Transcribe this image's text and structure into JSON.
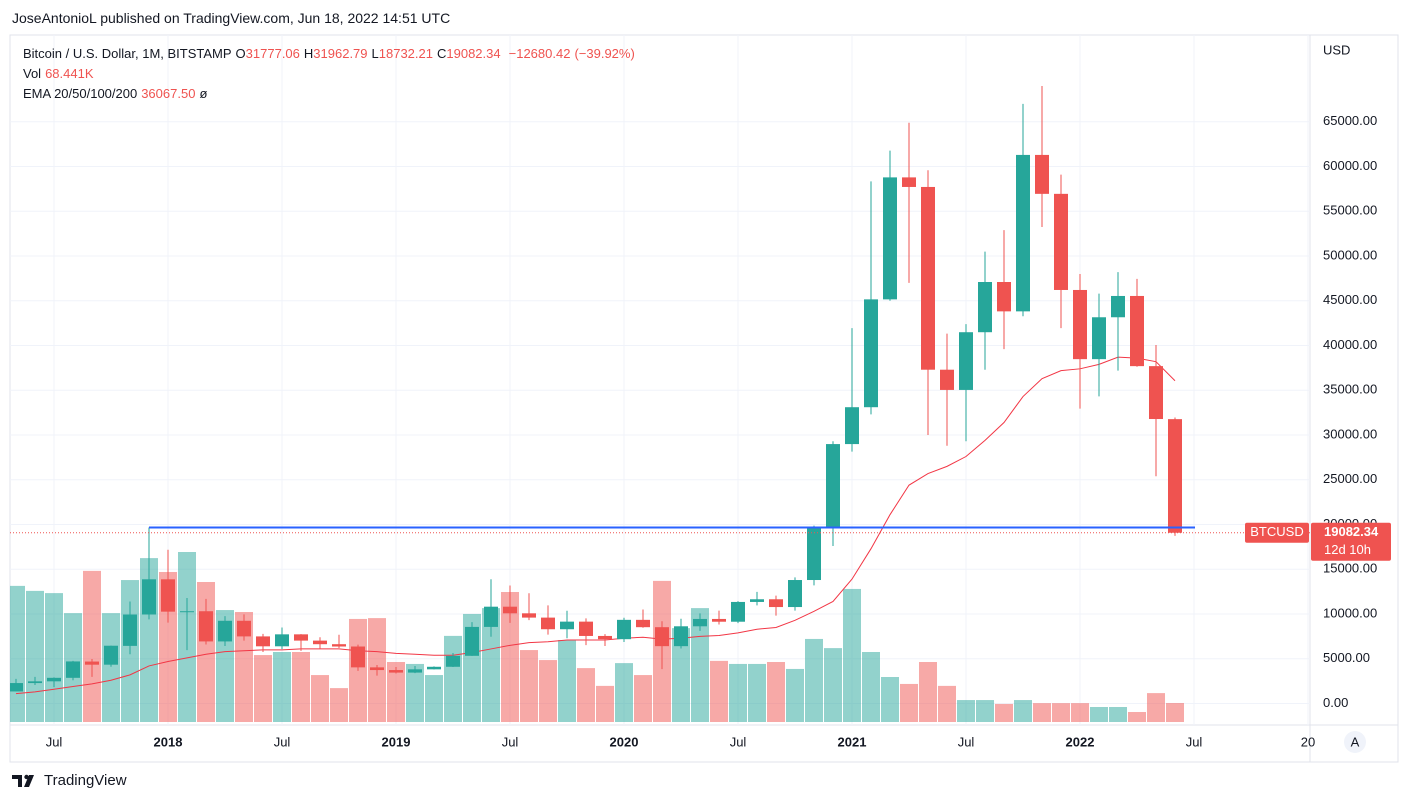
{
  "header": "JoseAntonioL published on TradingView.com, Jun 18, 2022 14:51 UTC",
  "footer": "TradingView",
  "chart_data": {
    "type": "candlestick",
    "symbol": "Bitcoin / U.S. Dollar, 1M, BITSTAMP",
    "ohlc_legend": [
      {
        "key": "O",
        "value": 31777.06
      },
      {
        "key": "H",
        "value": 31962.79
      },
      {
        "key": "L",
        "value": 18732.21
      },
      {
        "key": "C",
        "value": 19082.34
      }
    ],
    "change": {
      "value": -12680.42,
      "label": "−12680.42"
    },
    "change_pct": {
      "value": -39.92,
      "label": "(−39.92%)"
    },
    "volume_legend": {
      "name": "Vol",
      "value": 68.441,
      "label": "68.441K"
    },
    "ema_legend": {
      "name": "EMA 20/50/100/200",
      "value": 36067.5,
      "label": "36067.50",
      "extra": "ø"
    },
    "currency": "USD",
    "up_color": "#26a69a",
    "down_color": "#ef5350",
    "x": [
      "2017-05",
      "2017-06",
      "2017-07",
      "2017-08",
      "2017-09",
      "2017-10",
      "2017-11",
      "2017-12",
      "2018-01",
      "2018-02",
      "2018-03",
      "2018-04",
      "2018-05",
      "2018-06",
      "2018-07",
      "2018-08",
      "2018-09",
      "2018-10",
      "2018-11",
      "2018-12",
      "2019-01",
      "2019-02",
      "2019-03",
      "2019-04",
      "2019-05",
      "2019-06",
      "2019-07",
      "2019-08",
      "2019-09",
      "2019-10",
      "2019-11",
      "2019-12",
      "2020-01",
      "2020-02",
      "2020-03",
      "2020-04",
      "2020-05",
      "2020-06",
      "2020-07",
      "2020-08",
      "2020-09",
      "2020-10",
      "2020-11",
      "2020-12",
      "2021-01",
      "2021-02",
      "2021-03",
      "2021-04",
      "2021-05",
      "2021-06",
      "2021-07",
      "2021-08",
      "2021-09",
      "2021-10",
      "2021-11",
      "2021-12",
      "2022-01",
      "2022-02",
      "2022-03",
      "2022-04",
      "2022-05",
      "2022-06"
    ],
    "open": [
      1348,
      2286,
      2480,
      2871,
      4689,
      4339,
      6440,
      9947,
      13880,
      10266,
      10313,
      6938,
      9245,
      7500,
      6393,
      7730,
      7030,
      6630,
      6370,
      4040,
      3740,
      3457,
      3820,
      4105,
      5330,
      8560,
      10820,
      10080,
      9600,
      8300,
      9150,
      7550,
      7190,
      9350,
      8530,
      6410,
      8630,
      9450,
      9140,
      11350,
      11650,
      10780,
      13800,
      19700,
      28990,
      33110,
      45160,
      58790,
      57720,
      37300,
      35040,
      41490,
      47100,
      43820,
      61300,
      56950,
      46210,
      38480,
      43160,
      45540,
      37700,
      31777.06
    ],
    "high": [
      2760,
      2980,
      2916,
      4760,
      4975,
      6470,
      11395,
      19666,
      17176,
      11787,
      11700,
      9759,
      9964,
      7779,
      8490,
      7750,
      7410,
      7680,
      6580,
      4310,
      4080,
      4190,
      4150,
      5640,
      9090,
      13880,
      13190,
      12320,
      10960,
      10370,
      9520,
      7750,
      9580,
      10500,
      9190,
      9470,
      10070,
      10380,
      11440,
      12470,
      12060,
      14100,
      19880,
      29300,
      41950,
      58350,
      61780,
      64900,
      59590,
      41330,
      42400,
      50500,
      52900,
      67000,
      69000,
      59100,
      47990,
      45800,
      48200,
      47450,
      40060,
      31962.79
    ],
    "low": [
      1348,
      2076,
      1830,
      2603,
      2972,
      4110,
      5507,
      9400,
      9035,
      5968,
      6600,
      6425,
      7034,
      5755,
      6074,
      5880,
      6100,
      6200,
      3650,
      3120,
      3360,
      3400,
      3800,
      4080,
      5330,
      7460,
      9010,
      9320,
      7700,
      7300,
      6520,
      6430,
      6870,
      8470,
      3850,
      6150,
      8120,
      8830,
      8980,
      10960,
      9820,
      10380,
      13200,
      17600,
      28150,
      32310,
      45000,
      47000,
      30000,
      28800,
      29300,
      37300,
      39600,
      43280,
      53250,
      41950,
      32950,
      34320,
      37200,
      37630,
      25400,
      18732.21
    ],
    "close": [
      2286,
      2480,
      2871,
      4703,
      4339,
      6458,
      9946,
      13880,
      10265,
      10313,
      6938,
      9245,
      7500,
      6393,
      7730,
      7030,
      6630,
      6370,
      4040,
      3740,
      3457,
      3820,
      4105,
      5330,
      8560,
      10820,
      10080,
      9600,
      8300,
      9150,
      7550,
      7190,
      9350,
      8530,
      6410,
      8630,
      9450,
      9140,
      11350,
      11650,
      10780,
      13800,
      19700,
      28990,
      33110,
      45160,
      58790,
      57720,
      37300,
      35040,
      41490,
      47100,
      43820,
      61300,
      56950,
      46210,
      38480,
      43160,
      45540,
      37700,
      31790,
      19082.34
    ],
    "volume": [
      490,
      472,
      464,
      392,
      544,
      392,
      511,
      590,
      540,
      612,
      504,
      403,
      396,
      241,
      252,
      252,
      169,
      122,
      371,
      374,
      216,
      209,
      169,
      310,
      389,
      410,
      468,
      259,
      223,
      295,
      194,
      130,
      212,
      169,
      508,
      338,
      410,
      220,
      209,
      209,
      216,
      191,
      299,
      266,
      479,
      252,
      162,
      137,
      216,
      130,
      79,
      79,
      65,
      79,
      68,
      68,
      68,
      54,
      54,
      36,
      104,
      68.441
    ],
    "ema": {
      "color": "#f23645",
      "values": [
        1100,
        1300,
        1600,
        1900,
        2200,
        2600,
        3200,
        4200,
        4700,
        5100,
        5500,
        5800,
        5900,
        6000,
        6000,
        6100,
        6100,
        6100,
        5900,
        5800,
        5600,
        5500,
        5400,
        5400,
        5700,
        6100,
        6500,
        6800,
        6900,
        7100,
        7100,
        7100,
        7300,
        7400,
        7200,
        7300,
        7500,
        7600,
        7900,
        8300,
        8500,
        9300,
        10300,
        11400,
        13900,
        17300,
        21100,
        24400,
        25700,
        26500,
        27600,
        29400,
        31400,
        34300,
        36300,
        37200,
        37400,
        37900,
        38700,
        38600,
        38200,
        36067.5
      ]
    },
    "hline": {
      "value": 19666,
      "from": "2017-12",
      "color": "#2962ff"
    },
    "price_tag": {
      "symbol": "BTCUSD",
      "value": 19082.34,
      "countdown": "12d 10h"
    },
    "ylim": [
      -2400,
      74700
    ],
    "yticks": [
      {
        "value": 0,
        "label": "0.00"
      },
      {
        "value": 5000,
        "label": "5000.00"
      },
      {
        "value": 10000,
        "label": "10000.00"
      },
      {
        "value": 15000,
        "label": "15000.00"
      },
      {
        "value": 20000,
        "label": "20000.00"
      },
      {
        "value": 25000,
        "label": "25000.00"
      },
      {
        "value": 30000,
        "label": "30000.00"
      },
      {
        "value": 35000,
        "label": "35000.00"
      },
      {
        "value": 40000,
        "label": "40000.00"
      },
      {
        "value": 45000,
        "label": "45000.00"
      },
      {
        "value": 50000,
        "label": "50000.00"
      },
      {
        "value": 55000,
        "label": "55000.00"
      },
      {
        "value": 60000,
        "label": "60000.00"
      },
      {
        "value": 65000,
        "label": "65000.00"
      }
    ],
    "xticks": [
      {
        "value": "2017-07",
        "label": "Jul"
      },
      {
        "value": "2018-01",
        "label": "2018"
      },
      {
        "value": "2018-07",
        "label": "Jul"
      },
      {
        "value": "2019-01",
        "label": "2019"
      },
      {
        "value": "2019-07",
        "label": "Jul"
      },
      {
        "value": "2020-01",
        "label": "2020"
      },
      {
        "value": "2020-07",
        "label": "Jul"
      },
      {
        "value": "2021-01",
        "label": "2021"
      },
      {
        "value": "2021-07",
        "label": "Jul"
      },
      {
        "value": "2022-01",
        "label": "2022"
      },
      {
        "value": "2022-07",
        "label": "Jul"
      },
      {
        "value": "2023-01",
        "label": "20"
      }
    ],
    "auto_scale_button": "A",
    "grid": true
  }
}
